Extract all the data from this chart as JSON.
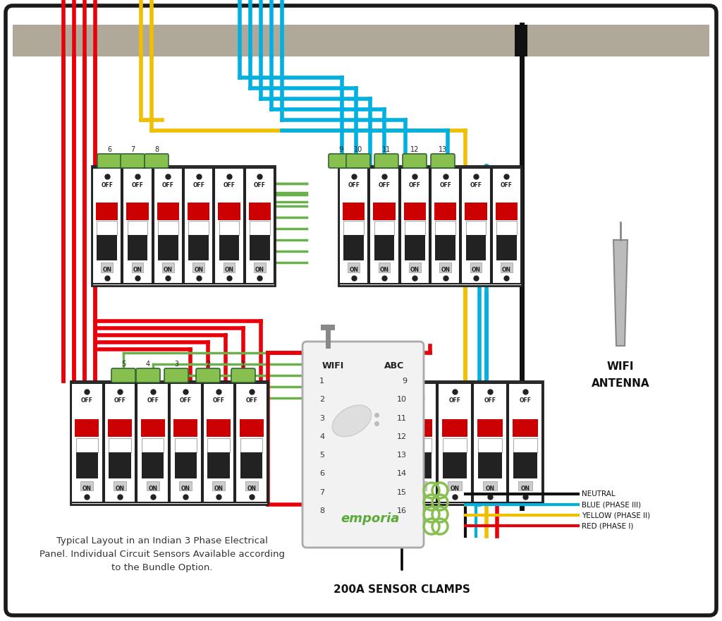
{
  "bg_color": "#ffffff",
  "border_color": "#1a1a1a",
  "wire_colors": {
    "red": "#e8000a",
    "yellow": "#f0c000",
    "blue": "#00b0e0",
    "green": "#6ab04c",
    "black": "#111111",
    "gray": "#999999",
    "light_green": "#88c050"
  },
  "breaker_colors": {
    "border": "#222222",
    "off_red": "#cc0000",
    "handle_black": "#222222",
    "dot": "#222222"
  },
  "emporia": {
    "brand_color": "#5aaa3a",
    "body_color": "#f2f2f2",
    "border_color": "#aaaaaa"
  },
  "legend_items": [
    {
      "label": "NEUTRAL",
      "color": "#111111"
    },
    {
      "label": "BLUE (PHASE III)",
      "color": "#00b0e0"
    },
    {
      "label": "YELLOW (PHASE II)",
      "color": "#f0c000"
    },
    {
      "label": "RED (PHASE I)",
      "color": "#e8000a"
    }
  ],
  "footnote": "Typical Layout in an Indian 3 Phase Electrical\nPanel. Individual Circuit Sensors Available according\nto the Bundle Option.",
  "sensor_clamp_label": "200A SENSOR CLAMPS",
  "header_bar_color": "#b0a898",
  "black_bar_color": "#111111"
}
